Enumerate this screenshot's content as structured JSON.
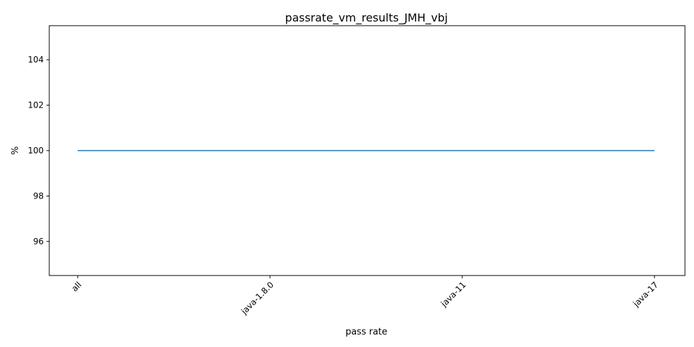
{
  "chart_data": {
    "type": "line",
    "title": "passrate_vm_results_JMH_vbj",
    "xlabel": "pass rate",
    "ylabel": "%",
    "categories": [
      "all",
      "java-1.8.0",
      "java-11",
      "java-17"
    ],
    "series": [
      {
        "values": [
          100,
          100,
          100,
          100
        ],
        "color": "#1f77b4"
      }
    ],
    "ylim": [
      94.5,
      105.5
    ],
    "yticks": [
      96,
      98,
      100,
      102,
      104
    ],
    "grid": false,
    "x_tick_rotation_deg": 45
  }
}
